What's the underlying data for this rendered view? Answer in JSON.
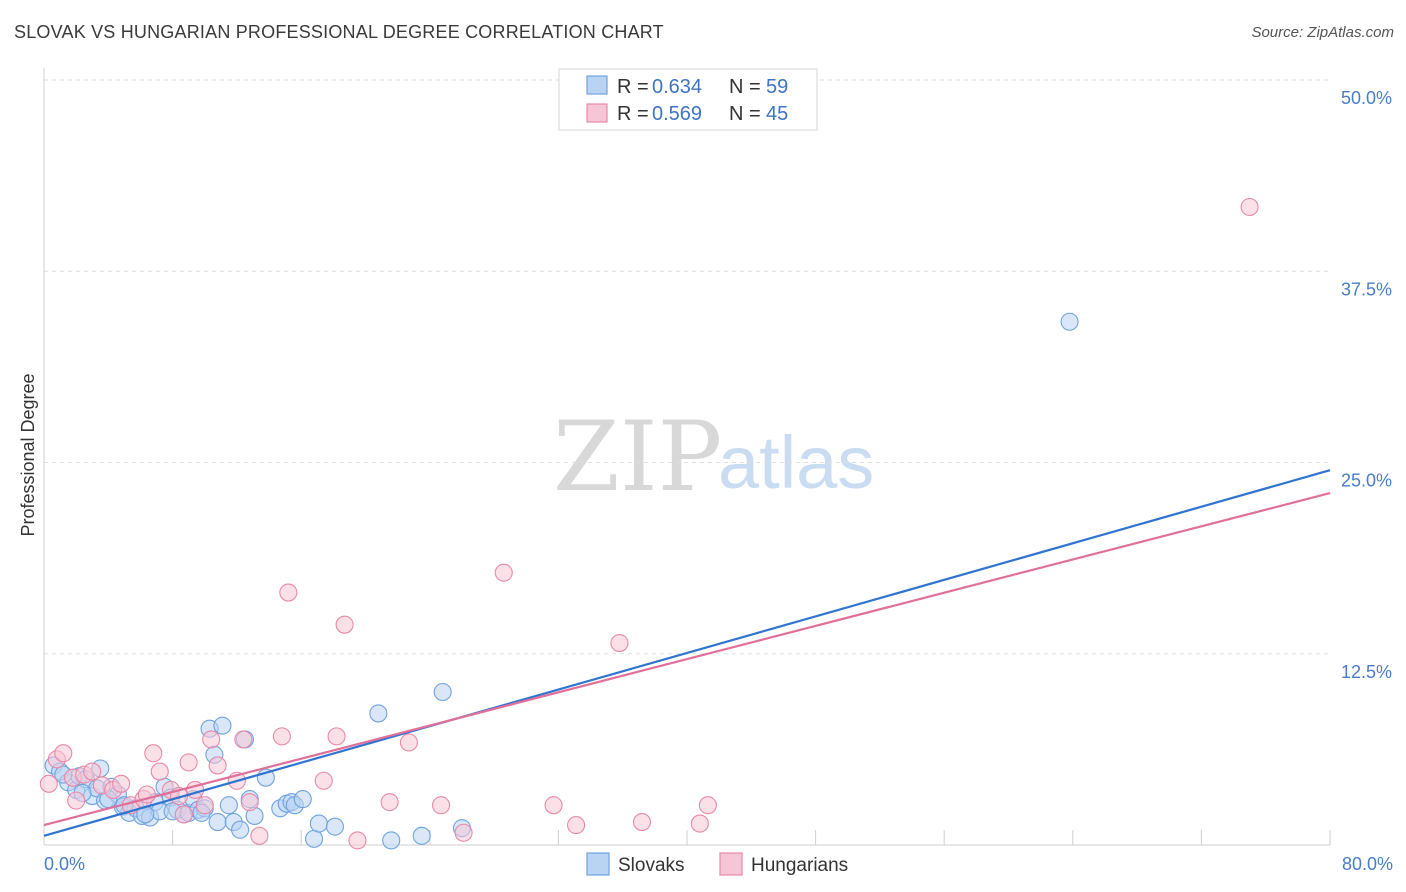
{
  "title": "SLOVAK VS HUNGARIAN PROFESSIONAL DEGREE CORRELATION CHART",
  "source": "Source: ZipAtlas.com",
  "watermark": {
    "zip": "ZIP",
    "atlas": "atlas"
  },
  "chart_data": {
    "type": "scatter",
    "title": "SLOVAK VS HUNGARIAN PROFESSIONAL DEGREE CORRELATION CHART",
    "xlabel": "",
    "ylabel": "Professional Degree",
    "xlim": [
      0,
      80
    ],
    "ylim": [
      0,
      50
    ],
    "x_tick_labels": [
      {
        "value": 0,
        "label": "0.0%"
      },
      {
        "value": 80,
        "label": "80.0%"
      }
    ],
    "y_tick_labels": [
      {
        "value": 12.5,
        "label": "12.5%"
      },
      {
        "value": 25,
        "label": "25.0%"
      },
      {
        "value": 37.5,
        "label": "37.5%"
      },
      {
        "value": 50,
        "label": "50.0%"
      }
    ],
    "grid": true,
    "legend_position": "top-center",
    "legend": [
      {
        "name": "Slovaks",
        "r_label": "R =",
        "r_value": "0.634",
        "n_label": "N =",
        "n_value": "59",
        "color": "#6fa3e0",
        "fill": "#b9d3f3"
      },
      {
        "name": "Hungarians",
        "r_label": "R =",
        "r_value": "0.569",
        "n_label": "N =",
        "n_value": "45",
        "color": "#e889a8",
        "fill": "#f7c6d6"
      }
    ],
    "series": [
      {
        "name": "Slovaks",
        "color": "#6fa3e0",
        "line_color": "#2f74d0",
        "trend": {
          "x": [
            0,
            80
          ],
          "y": [
            0.6,
            24.5
          ]
        },
        "points": [
          {
            "x": 0.6,
            "y": 5.2
          },
          {
            "x": 1.0,
            "y": 4.8
          },
          {
            "x": 1.5,
            "y": 4.1
          },
          {
            "x": 2.0,
            "y": 3.6
          },
          {
            "x": 2.2,
            "y": 4.5
          },
          {
            "x": 2.6,
            "y": 4.3
          },
          {
            "x": 3.0,
            "y": 3.2
          },
          {
            "x": 3.3,
            "y": 3.7
          },
          {
            "x": 3.5,
            "y": 5.0
          },
          {
            "x": 3.8,
            "y": 2.9
          },
          {
            "x": 4.2,
            "y": 3.8
          },
          {
            "x": 4.6,
            "y": 3.3
          },
          {
            "x": 4.9,
            "y": 2.5
          },
          {
            "x": 5.3,
            "y": 2.1
          },
          {
            "x": 5.7,
            "y": 2.4
          },
          {
            "x": 6.1,
            "y": 1.9
          },
          {
            "x": 6.6,
            "y": 1.8
          },
          {
            "x": 6.9,
            "y": 2.8
          },
          {
            "x": 7.2,
            "y": 2.2
          },
          {
            "x": 7.5,
            "y": 3.8
          },
          {
            "x": 7.9,
            "y": 3.1
          },
          {
            "x": 8.3,
            "y": 2.3
          },
          {
            "x": 8.7,
            "y": 2.0
          },
          {
            "x": 9.0,
            "y": 2.1
          },
          {
            "x": 9.3,
            "y": 3.0
          },
          {
            "x": 9.6,
            "y": 2.3
          },
          {
            "x": 10.0,
            "y": 2.4
          },
          {
            "x": 10.3,
            "y": 7.6
          },
          {
            "x": 10.6,
            "y": 5.9
          },
          {
            "x": 10.8,
            "y": 1.5
          },
          {
            "x": 11.1,
            "y": 7.8
          },
          {
            "x": 11.5,
            "y": 2.6
          },
          {
            "x": 11.8,
            "y": 1.5
          },
          {
            "x": 12.2,
            "y": 1.0
          },
          {
            "x": 12.5,
            "y": 6.9
          },
          {
            "x": 12.8,
            "y": 3.0
          },
          {
            "x": 13.1,
            "y": 1.9
          },
          {
            "x": 13.8,
            "y": 4.4
          },
          {
            "x": 14.7,
            "y": 2.4
          },
          {
            "x": 15.1,
            "y": 2.7
          },
          {
            "x": 15.4,
            "y": 2.8
          },
          {
            "x": 15.6,
            "y": 2.6
          },
          {
            "x": 16.1,
            "y": 3.0
          },
          {
            "x": 16.8,
            "y": 0.4
          },
          {
            "x": 17.1,
            "y": 1.4
          },
          {
            "x": 18.1,
            "y": 1.2
          },
          {
            "x": 20.8,
            "y": 8.6
          },
          {
            "x": 21.6,
            "y": 0.3
          },
          {
            "x": 23.5,
            "y": 0.6
          },
          {
            "x": 24.8,
            "y": 10.0
          },
          {
            "x": 26.0,
            "y": 1.1
          },
          {
            "x": 63.8,
            "y": 34.2
          },
          {
            "x": 1.2,
            "y": 4.6
          },
          {
            "x": 2.4,
            "y": 3.4
          },
          {
            "x": 4.0,
            "y": 3.0
          },
          {
            "x": 5.0,
            "y": 2.6
          },
          {
            "x": 6.3,
            "y": 2.0
          },
          {
            "x": 8.0,
            "y": 2.2
          },
          {
            "x": 9.8,
            "y": 2.1
          }
        ]
      },
      {
        "name": "Hungarians",
        "color": "#e889a8",
        "line_color": "#e0709a",
        "trend": {
          "x": [
            0,
            80
          ],
          "y": [
            1.3,
            23.0
          ]
        },
        "points": [
          {
            "x": 0.3,
            "y": 4.0
          },
          {
            "x": 0.8,
            "y": 5.6
          },
          {
            "x": 1.2,
            "y": 6.0
          },
          {
            "x": 1.8,
            "y": 4.4
          },
          {
            "x": 2.5,
            "y": 4.6
          },
          {
            "x": 3.0,
            "y": 4.8
          },
          {
            "x": 3.6,
            "y": 3.9
          },
          {
            "x": 4.3,
            "y": 3.6
          },
          {
            "x": 4.8,
            "y": 4.0
          },
          {
            "x": 5.4,
            "y": 2.6
          },
          {
            "x": 6.2,
            "y": 3.0
          },
          {
            "x": 6.4,
            "y": 3.3
          },
          {
            "x": 6.8,
            "y": 6.0
          },
          {
            "x": 7.2,
            "y": 4.8
          },
          {
            "x": 7.9,
            "y": 3.6
          },
          {
            "x": 8.4,
            "y": 3.2
          },
          {
            "x": 8.7,
            "y": 2.0
          },
          {
            "x": 9.0,
            "y": 5.4
          },
          {
            "x": 9.4,
            "y": 3.6
          },
          {
            "x": 10.0,
            "y": 2.6
          },
          {
            "x": 10.4,
            "y": 6.9
          },
          {
            "x": 10.8,
            "y": 5.2
          },
          {
            "x": 12.0,
            "y": 4.2
          },
          {
            "x": 12.4,
            "y": 6.9
          },
          {
            "x": 12.8,
            "y": 2.8
          },
          {
            "x": 13.4,
            "y": 0.6
          },
          {
            "x": 14.8,
            "y": 7.1
          },
          {
            "x": 15.2,
            "y": 16.5
          },
          {
            "x": 17.4,
            "y": 4.2
          },
          {
            "x": 18.2,
            "y": 7.1
          },
          {
            "x": 18.7,
            "y": 14.4
          },
          {
            "x": 19.5,
            "y": 0.3
          },
          {
            "x": 21.5,
            "y": 2.8
          },
          {
            "x": 22.7,
            "y": 6.7
          },
          {
            "x": 24.7,
            "y": 2.6
          },
          {
            "x": 26.1,
            "y": 0.8
          },
          {
            "x": 28.6,
            "y": 17.8
          },
          {
            "x": 31.7,
            "y": 2.6
          },
          {
            "x": 33.1,
            "y": 1.3
          },
          {
            "x": 35.8,
            "y": 13.2
          },
          {
            "x": 37.2,
            "y": 1.5
          },
          {
            "x": 40.8,
            "y": 1.4
          },
          {
            "x": 41.3,
            "y": 2.6
          },
          {
            "x": 75.0,
            "y": 41.7
          },
          {
            "x": 2.0,
            "y": 2.9
          }
        ]
      }
    ]
  }
}
